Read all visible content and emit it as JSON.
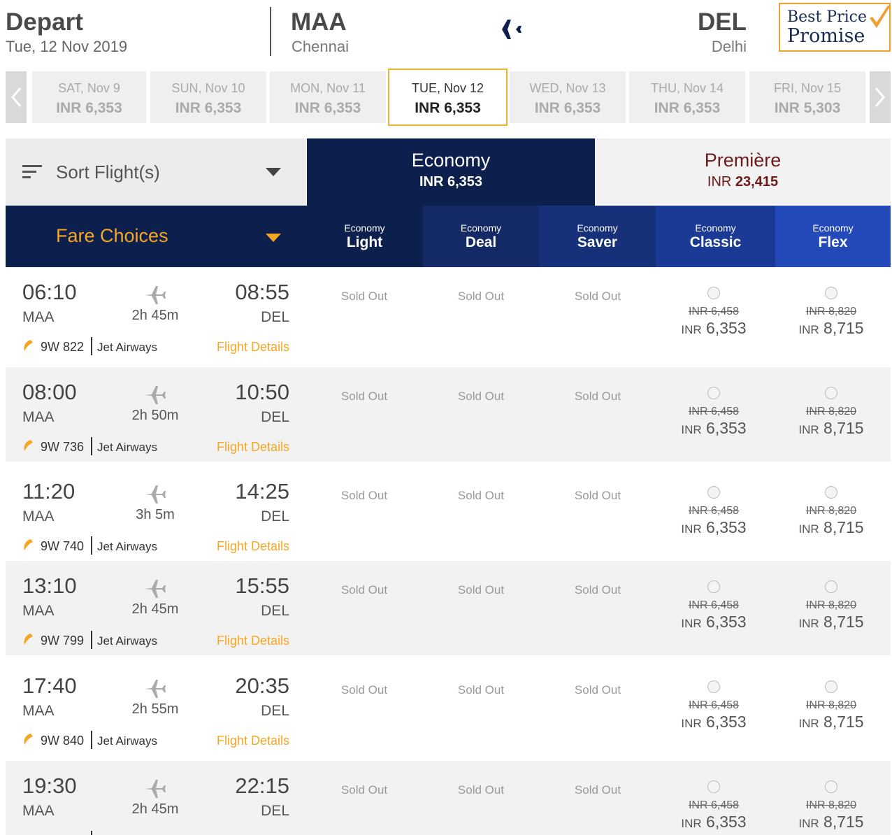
{
  "header": {
    "title": "Depart",
    "date": "Tue, 12 Nov 2019",
    "origin_code": "MAA",
    "origin_city": "Chennai",
    "dest_code": "DEL",
    "dest_city": "Delhi",
    "badge_line1": "Best Price",
    "badge_line2": "Promise"
  },
  "dates": [
    {
      "label": "SAT, Nov 9",
      "price": "INR 6,353",
      "active": false
    },
    {
      "label": "SUN, Nov 10",
      "price": "INR 6,353",
      "active": false
    },
    {
      "label": "MON, Nov 11",
      "price": "INR 6,353",
      "active": false
    },
    {
      "label": "TUE, Nov 12",
      "price": "INR 6,353",
      "active": true
    },
    {
      "label": "WED, Nov 13",
      "price": "INR 6,353",
      "active": false
    },
    {
      "label": "THU, Nov 14",
      "price": "INR 6,353",
      "active": false
    },
    {
      "label": "FRI, Nov 15",
      "price": "INR 5,303",
      "active": false
    }
  ],
  "sort": {
    "label": "Sort Flight(s)"
  },
  "tabs": {
    "economy": {
      "name": "Economy",
      "price": "INR 6,353"
    },
    "premiere": {
      "name": "Première",
      "currency": "INR",
      "amount": "23,415"
    }
  },
  "fare_choices": {
    "label": "Fare Choices",
    "columns": [
      {
        "small": "Economy",
        "big": "Light"
      },
      {
        "small": "Economy",
        "big": "Deal"
      },
      {
        "small": "Economy",
        "big": "Saver"
      },
      {
        "small": "Economy",
        "big": "Classic"
      },
      {
        "small": "Economy",
        "big": "Flex"
      }
    ]
  },
  "flights": [
    {
      "dep": "06:10",
      "from": "MAA",
      "duration": "2h 45m",
      "arr": "08:55",
      "to": "DEL",
      "flight_no": "9W 822",
      "airline": "Jet Airways",
      "details": "Flight Details",
      "sold": [
        "Sold Out",
        "Sold Out",
        "Sold Out"
      ],
      "classic_old": "INR 6,458",
      "classic_cur": "INR",
      "classic_new": "6,353",
      "flex_old": "INR 8,820",
      "flex_cur": "INR",
      "flex_new": "8,715"
    },
    {
      "dep": "08:00",
      "from": "MAA",
      "duration": "2h 50m",
      "arr": "10:50",
      "to": "DEL",
      "flight_no": "9W 736",
      "airline": "Jet Airways",
      "details": "Flight Details",
      "sold": [
        "Sold Out",
        "Sold Out",
        "Sold Out"
      ],
      "classic_old": "INR 6,458",
      "classic_cur": "INR",
      "classic_new": "6,353",
      "flex_old": "INR 8,820",
      "flex_cur": "INR",
      "flex_new": "8,715"
    },
    {
      "dep": "11:20",
      "from": "MAA",
      "duration": "3h 5m",
      "arr": "14:25",
      "to": "DEL",
      "flight_no": "9W 740",
      "airline": "Jet Airways",
      "details": "Flight Details",
      "sold": [
        "Sold Out",
        "Sold Out",
        "Sold Out"
      ],
      "classic_old": "INR 6,458",
      "classic_cur": "INR",
      "classic_new": "6,353",
      "flex_old": "INR 8,820",
      "flex_cur": "INR",
      "flex_new": "8,715"
    },
    {
      "dep": "13:10",
      "from": "MAA",
      "duration": "2h 45m",
      "arr": "15:55",
      "to": "DEL",
      "flight_no": "9W 799",
      "airline": "Jet Airways",
      "details": "Flight Details",
      "sold": [
        "Sold Out",
        "Sold Out",
        "Sold Out"
      ],
      "classic_old": "INR 6,458",
      "classic_cur": "INR",
      "classic_new": "6,353",
      "flex_old": "INR 8,820",
      "flex_cur": "INR",
      "flex_new": "8,715"
    },
    {
      "dep": "17:40",
      "from": "MAA",
      "duration": "2h 55m",
      "arr": "20:35",
      "to": "DEL",
      "flight_no": "9W 840",
      "airline": "Jet Airways",
      "details": "Flight Details",
      "sold": [
        "Sold Out",
        "Sold Out",
        "Sold Out"
      ],
      "classic_old": "INR 6,458",
      "classic_cur": "INR",
      "classic_new": "6,353",
      "flex_old": "INR 8,820",
      "flex_cur": "INR",
      "flex_new": "8,715"
    },
    {
      "dep": "19:30",
      "from": "MAA",
      "duration": "2h 45m",
      "arr": "22:15",
      "to": "DEL",
      "flight_no": "",
      "airline": "",
      "details": "",
      "sold": [
        "Sold Out",
        "Sold Out",
        "Sold Out"
      ],
      "classic_old": "INR 6,458",
      "classic_cur": "INR",
      "classic_new": "6,353",
      "flex_old": "INR 8,820",
      "flex_cur": "INR",
      "flex_new": "8,715"
    }
  ],
  "icons": {
    "header_plane": "plane-icon",
    "row_plane": "plane-icon",
    "airline_logo": "jet-airways-logo-icon",
    "check": "checkmark-icon",
    "prev": "chevron-left-icon",
    "next": "chevron-right-icon",
    "sort": "sort-lines-icon",
    "caret": "caret-down-icon"
  },
  "colors": {
    "navy": "#0d1f4c",
    "accent_orange": "#f5a623",
    "active_border": "#f0b030",
    "premiere_text": "#6e1a1a",
    "fare_deal": "#132a66",
    "fare_saver": "#17307a",
    "fare_classic": "#1b3a96",
    "fare_flex": "#2449b8"
  }
}
